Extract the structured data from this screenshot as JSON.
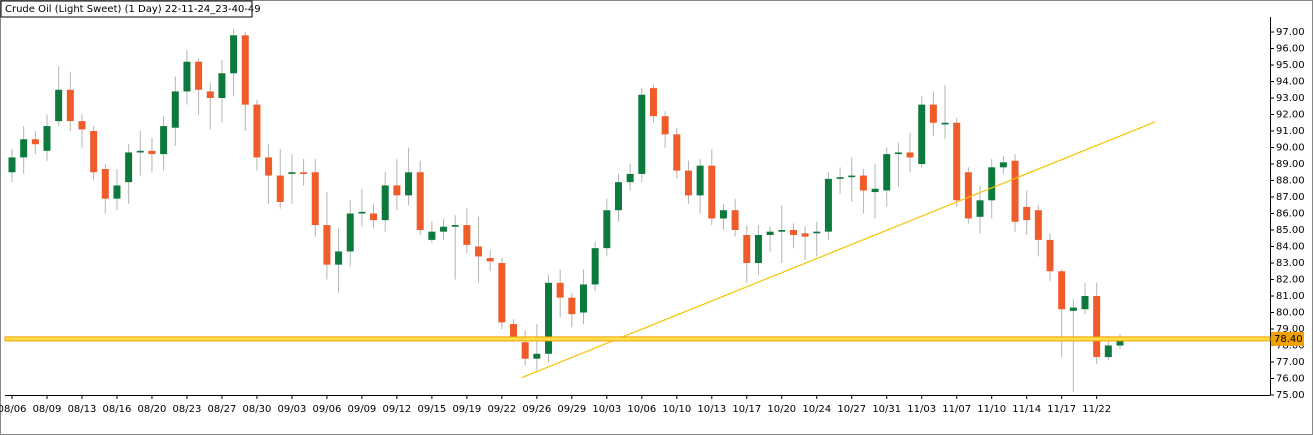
{
  "chart_data": {
    "type": "candlestick",
    "title": "Crude Oil (Light Sweet) (1 Day) 22-11-24_23-40-49",
    "categories": [
      "08/06",
      null,
      null,
      "08/09",
      null,
      null,
      "08/13",
      null,
      null,
      "08/16",
      null,
      null,
      "08/20",
      null,
      null,
      "08/23",
      null,
      null,
      "08/27",
      null,
      null,
      "08/30",
      null,
      null,
      "09/03",
      null,
      null,
      "09/06",
      null,
      null,
      "09/09",
      null,
      null,
      "09/12",
      null,
      null,
      "09/15",
      null,
      null,
      "09/19",
      null,
      null,
      "09/22",
      null,
      null,
      "09/26",
      null,
      null,
      "09/29",
      null,
      null,
      "10/03",
      null,
      null,
      "10/06",
      null,
      null,
      "10/10",
      null,
      null,
      "10/13",
      null,
      null,
      "10/17",
      null,
      null,
      "10/20",
      null,
      null,
      "10/24",
      null,
      null,
      "10/27",
      null,
      null,
      "10/31",
      null,
      null,
      "11/03",
      null,
      null,
      "11/07",
      null,
      null,
      "11/10",
      null,
      null,
      "11/14",
      null,
      null,
      "11/17",
      null,
      null,
      "11/22",
      null,
      null
    ],
    "open": [
      88.5,
      89.4,
      90.5,
      89.8,
      91.6,
      93.5,
      91.6,
      91.0,
      88.7,
      86.9,
      87.9,
      89.7,
      89.8,
      89.6,
      91.2,
      93.4,
      95.2,
      93.4,
      93.0,
      94.5,
      96.8,
      92.6,
      89.4,
      88.3,
      88.4,
      88.5,
      88.5,
      85.3,
      82.9,
      83.7,
      86.0,
      86.0,
      85.6,
      87.7,
      87.1,
      88.5,
      84.4,
      84.9,
      85.2,
      85.3,
      84.0,
      83.3,
      83.0,
      79.3,
      78.2,
      77.2,
      77.5,
      81.8,
      80.9,
      80.0,
      81.7,
      83.9,
      86.2,
      87.9,
      88.4,
      93.6,
      91.9,
      90.8,
      88.6,
      87.1,
      88.9,
      85.7,
      86.2,
      84.7,
      83.0,
      84.7,
      84.9,
      85.0,
      84.8,
      84.8,
      84.9,
      88.1,
      88.2,
      88.3,
      87.3,
      87.4,
      89.6,
      89.7,
      89.0,
      92.6,
      91.4,
      91.5,
      88.5,
      85.8,
      86.8,
      88.8,
      89.2,
      86.4,
      86.2,
      84.4,
      82.5,
      80.1,
      80.2,
      81.0,
      77.3,
      78.0
    ],
    "high": [
      89.9,
      91.3,
      91.0,
      92.0,
      94.9,
      94.6,
      92.0,
      91.3,
      89.0,
      88.7,
      90.2,
      91.0,
      90.6,
      91.9,
      94.3,
      95.9,
      95.4,
      93.9,
      95.3,
      97.2,
      97.0,
      92.9,
      90.2,
      89.9,
      89.6,
      89.3,
      89.3,
      87.3,
      85.1,
      86.8,
      87.5,
      86.6,
      88.5,
      89.3,
      90.0,
      89.2,
      85.5,
      85.7,
      85.9,
      86.3,
      85.8,
      83.8,
      83.3,
      79.6,
      78.9,
      79.3,
      82.3,
      82.6,
      81.2,
      82.6,
      84.3,
      86.9,
      88.4,
      89.0,
      93.6,
      93.8,
      92.2,
      91.2,
      89.2,
      89.3,
      89.9,
      86.6,
      86.9,
      85.3,
      85.3,
      85.2,
      86.5,
      85.4,
      85.2,
      85.5,
      88.5,
      88.8,
      89.4,
      88.7,
      89.0,
      90.0,
      90.3,
      90.9,
      93.1,
      93.4,
      93.8,
      91.8,
      88.8,
      87.7,
      89.3,
      89.5,
      89.6,
      87.4,
      86.5,
      84.8,
      82.6,
      80.8,
      81.8,
      81.8,
      78.6,
      78.7
    ],
    "low": [
      87.9,
      88.4,
      89.6,
      89.2,
      91.3,
      91.0,
      90.0,
      88.0,
      86.0,
      86.2,
      86.6,
      88.3,
      88.5,
      88.6,
      90.1,
      92.6,
      92.0,
      91.1,
      91.5,
      93.1,
      91.0,
      88.6,
      86.6,
      86.3,
      86.6,
      87.7,
      84.6,
      82.0,
      81.2,
      82.8,
      85.2,
      85.1,
      84.9,
      86.2,
      86.5,
      84.7,
      84.2,
      84.4,
      82.0,
      83.6,
      81.8,
      82.5,
      79.0,
      78.2,
      76.8,
      76.5,
      77.0,
      79.7,
      79.1,
      79.3,
      81.3,
      83.4,
      85.5,
      87.4,
      87.9,
      91.5,
      90.0,
      88.1,
      86.6,
      86.0,
      85.3,
      85.0,
      84.6,
      81.8,
      82.3,
      83.7,
      83.0,
      83.9,
      83.2,
      83.4,
      84.4,
      87.2,
      86.7,
      86.0,
      85.7,
      86.4,
      87.6,
      88.5,
      88.8,
      90.7,
      90.5,
      86.4,
      85.4,
      84.8,
      85.7,
      88.4,
      84.9,
      84.7,
      83.4,
      81.9,
      77.3,
      75.2,
      79.9,
      76.9,
      77.1,
      77.8
    ],
    "close": [
      89.4,
      90.5,
      90.2,
      91.3,
      93.5,
      91.6,
      91.1,
      88.5,
      86.9,
      87.7,
      89.7,
      89.8,
      89.6,
      91.3,
      93.4,
      95.2,
      93.5,
      93.0,
      94.5,
      96.8,
      92.6,
      89.4,
      88.3,
      86.7,
      88.5,
      88.4,
      85.3,
      82.9,
      83.7,
      86.0,
      86.1,
      85.6,
      87.7,
      87.1,
      88.5,
      85.0,
      84.9,
      85.2,
      85.3,
      84.1,
      83.4,
      83.1,
      79.4,
      78.4,
      77.2,
      77.5,
      81.8,
      80.9,
      79.9,
      81.7,
      83.9,
      86.2,
      87.9,
      88.4,
      93.2,
      91.9,
      90.8,
      88.6,
      87.1,
      88.9,
      85.7,
      86.2,
      85.0,
      83.0,
      84.7,
      84.9,
      85.0,
      84.7,
      84.6,
      84.9,
      88.1,
      88.2,
      88.3,
      87.4,
      87.5,
      89.6,
      89.7,
      89.4,
      92.6,
      91.5,
      91.5,
      86.8,
      85.7,
      86.8,
      88.8,
      89.1,
      85.5,
      85.6,
      84.4,
      82.5,
      80.2,
      80.3,
      81.0,
      77.3,
      78.0,
      78.4
    ],
    "up_color": "#0c7a3c",
    "down_color": "#f05b2a",
    "wick_color": "#b4b4b4",
    "ylim": [
      75,
      97.85
    ],
    "yticks": [
      {
        "value": 75,
        "label": "75.00"
      },
      {
        "value": 76,
        "label": "76.00"
      },
      {
        "value": 77,
        "label": "77.00"
      },
      {
        "value": 78,
        "label": "78.00"
      },
      {
        "value": 79,
        "label": "79.00"
      },
      {
        "value": 80,
        "label": "80.00"
      },
      {
        "value": 81,
        "label": "81.00"
      },
      {
        "value": 82,
        "label": "82.00"
      },
      {
        "value": 83,
        "label": "83.00"
      },
      {
        "value": 84,
        "label": "84.00"
      },
      {
        "value": 85,
        "label": "85.00"
      },
      {
        "value": 86,
        "label": "86.00"
      },
      {
        "value": 87,
        "label": "87.00"
      },
      {
        "value": 88,
        "label": "88.00"
      },
      {
        "value": 89,
        "label": "89.00"
      },
      {
        "value": 90,
        "label": "90.00"
      },
      {
        "value": 91,
        "label": "91.00"
      },
      {
        "value": 92,
        "label": "92.00"
      },
      {
        "value": 93,
        "label": "93.00"
      },
      {
        "value": 94,
        "label": "94.00"
      },
      {
        "value": 95,
        "label": "95.00"
      },
      {
        "value": 96,
        "label": "96.00"
      },
      {
        "value": 97,
        "label": "97.00"
      }
    ],
    "price_line": {
      "value": 78.4,
      "label": "78.40",
      "color": "#f0a000"
    },
    "trend_line": {
      "x": [
        43.7,
        98.0
      ],
      "y": [
        76.05,
        91.55
      ],
      "color": "#f5c400"
    }
  }
}
